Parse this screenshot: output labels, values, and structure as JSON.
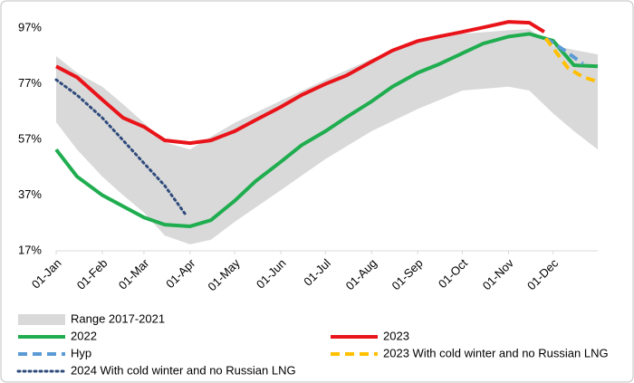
{
  "chart_data": {
    "type": "line",
    "xlim": [
      1,
      365
    ],
    "ylim": [
      17,
      100
    ],
    "xticks": [
      {
        "value": 1,
        "label": "01-Jan"
      },
      {
        "value": 32,
        "label": "01-Feb"
      },
      {
        "value": 60,
        "label": "01-Mar"
      },
      {
        "value": 91,
        "label": "01-Apr"
      },
      {
        "value": 121,
        "label": "01-May"
      },
      {
        "value": 152,
        "label": "01-Jun"
      },
      {
        "value": 182,
        "label": "01-Jul"
      },
      {
        "value": 213,
        "label": "01-Aug"
      },
      {
        "value": 244,
        "label": "01-Sep"
      },
      {
        "value": 274,
        "label": "01-Oct"
      },
      {
        "value": 305,
        "label": "01-Nov"
      },
      {
        "value": 335,
        "label": "01-Dec"
      }
    ],
    "yticks": [
      {
        "value": 17,
        "label": "17%"
      },
      {
        "value": 37,
        "label": "37%"
      },
      {
        "value": 57,
        "label": "57%"
      },
      {
        "value": 77,
        "label": "77%"
      },
      {
        "value": 97,
        "label": "97%"
      }
    ],
    "series": [
      {
        "name": "Range 2017-2021",
        "type": "band",
        "color": "#d9d9d9",
        "x": [
          1,
          15,
          32,
          46,
          60,
          74,
          91,
          105,
          121,
          152,
          182,
          213,
          244,
          274,
          305,
          319,
          335,
          349,
          365
        ],
        "high": [
          87,
          81,
          76,
          69.7,
          63,
          56,
          53.4,
          58,
          63,
          71,
          78.5,
          86,
          91.8,
          95,
          96.3,
          96.7,
          90.8,
          89.2,
          87.6
        ],
        "low": [
          63.2,
          53.4,
          43.7,
          37,
          30.7,
          22.5,
          19.3,
          21,
          27.4,
          38.8,
          50,
          60,
          68,
          74.6,
          76,
          74.6,
          66.4,
          60,
          53.4
        ]
      },
      {
        "name": "2022",
        "color": "#1fad4f",
        "dash": "solid",
        "x": [
          1,
          15,
          32,
          46,
          60,
          74,
          91,
          105,
          121,
          135,
          152,
          166,
          182,
          196,
          213,
          227,
          244,
          258,
          274,
          288,
          305,
          319,
          335,
          349,
          365
        ],
        "values": [
          53.4,
          43.7,
          37,
          33,
          29,
          26.4,
          25.8,
          28,
          35,
          42,
          49,
          55,
          60,
          65,
          70.7,
          76,
          81,
          84,
          88,
          91.5,
          94,
          95,
          92.5,
          83.7,
          83.3
        ]
      },
      {
        "name": "2023",
        "color": "#e8141a",
        "dash": "solid",
        "x": [
          1,
          15,
          32,
          46,
          60,
          74,
          91,
          105,
          121,
          135,
          152,
          166,
          182,
          196,
          213,
          227,
          244,
          258,
          274,
          288,
          305,
          319,
          329
        ],
        "values": [
          83.3,
          79.4,
          71.3,
          64.8,
          61.6,
          56.7,
          55.7,
          56.7,
          60,
          64,
          68.7,
          73,
          77,
          80,
          85,
          89,
          92.4,
          94,
          95.7,
          97.3,
          99.3,
          99,
          95.7
        ]
      },
      {
        "name": "Hyp",
        "color": "#5b9bd5",
        "dash": "dashed",
        "x": [
          330,
          340,
          355
        ],
        "values": [
          93.4,
          90,
          84.3
        ]
      },
      {
        "name": "2023 With cold winter and no Russian LNG",
        "color": "#ffc000",
        "dash": "dashed",
        "x": [
          330,
          345,
          355,
          365
        ],
        "values": [
          93.4,
          82.7,
          79.5,
          77.8
        ]
      },
      {
        "name": "2024 With cold winter and no Russian LNG",
        "color": "#2f4b7c",
        "dash": "dotted",
        "x": [
          1,
          15,
          32,
          46,
          60,
          74,
          88
        ],
        "values": [
          78.5,
          73,
          64.8,
          56.7,
          48.5,
          40.4,
          30
        ]
      }
    ]
  }
}
